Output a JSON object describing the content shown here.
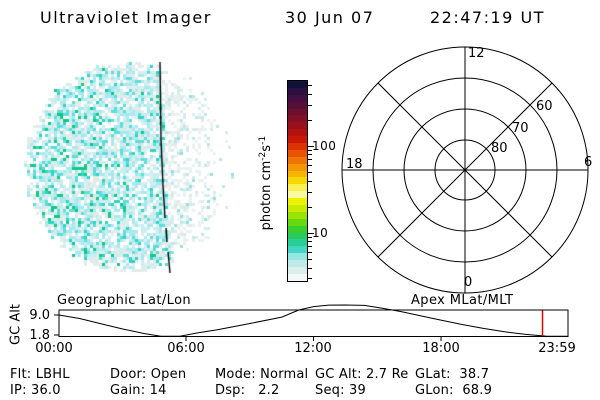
{
  "header": {
    "app_title": "Ultraviolet Imager",
    "date": "30 Jun 07",
    "time": "22:47:19 UT"
  },
  "uv_image": {
    "description": "speckled UV auroral disk image with day/night terminator line",
    "palette_day": [
      "#ffffff",
      "#e2eceb",
      "#c8eef0",
      "#a6e9f0",
      "#5eddd8",
      "#2ed4c4",
      "#12c786"
    ],
    "palette_night": [
      "#eaf2f0",
      "#d8ecea",
      "#bfe7e9",
      "#94e0e2"
    ],
    "terminator_color": "#000000"
  },
  "colorbar": {
    "unit_prefix": "photon cm",
    "unit_exp1": "-2",
    "unit_mid": "s",
    "unit_exp2": "-1",
    "tick_labels": [
      "100",
      "10"
    ],
    "colors": [
      "#101038",
      "#2a0f40",
      "#420f40",
      "#570f38",
      "#6d102f",
      "#831026",
      "#9a101c",
      "#b21210",
      "#c91708",
      "#dc3304",
      "#e85404",
      "#f07504",
      "#f39600",
      "#f6b400",
      "#f8d800",
      "#f8f055",
      "#fafa9e",
      "#edf200",
      "#c8ec00",
      "#9ce400",
      "#66da0c",
      "#38d02c",
      "#2aca5c",
      "#28ce96",
      "#40d8c4",
      "#96e6e2",
      "#c0eae7",
      "#dceeec",
      "#f2f8f7"
    ]
  },
  "polar_plot": {
    "mlt_top": "12",
    "mlt_left": "18",
    "mlt_right": "6",
    "mlt_bottom": "0",
    "lat_ring_80": "80",
    "lat_ring_70": "70",
    "lat_ring_60": "60"
  },
  "orbit_plot": {
    "left_label": "Geographic Lat/Lon",
    "right_label": "Apex MLat/MLT",
    "y_axis_label": "GC Alt",
    "y_tick_top": "9.0",
    "y_tick_bottom": "1.8",
    "x_ticks": [
      "00:00",
      "06:00",
      "12:00",
      "18:00",
      "23:59"
    ],
    "marker_color": "#dd0000",
    "marker_time_hours": 22.79,
    "curve_t_alt": [
      [
        0,
        9.0
      ],
      [
        1,
        7.8
      ],
      [
        2,
        6.0
      ],
      [
        3,
        4.3
      ],
      [
        4,
        2.8
      ],
      [
        4.8,
        1.87
      ],
      [
        5.7,
        1.87
      ],
      [
        6.5,
        2.97
      ],
      [
        7.5,
        4.1
      ],
      [
        9,
        6.15
      ],
      [
        10.5,
        8.3
      ],
      [
        11.3,
        10.66
      ],
      [
        12,
        11.8
      ],
      [
        12.7,
        12.3
      ],
      [
        13.5,
        12.32
      ],
      [
        14.4,
        12.2
      ],
      [
        15.2,
        11.3
      ],
      [
        16.1,
        10.16
      ],
      [
        17,
        8.8
      ],
      [
        18,
        7.3
      ],
      [
        19,
        5.8
      ],
      [
        20,
        4.5
      ],
      [
        21,
        3.37
      ],
      [
        22,
        2.5
      ],
      [
        23,
        1.87
      ],
      [
        23.98,
        1.87
      ]
    ]
  },
  "status": {
    "row1": [
      "Flt: LBHL",
      "Door: Open",
      "Mode: Normal",
      "GC Alt: 2.7 Re",
      "GLat:  38.7"
    ],
    "row2": [
      "IP: 36.0",
      "Gain: 14",
      "Dsp:   2.2",
      "Seq: 39",
      "GLon:  68.9"
    ]
  }
}
